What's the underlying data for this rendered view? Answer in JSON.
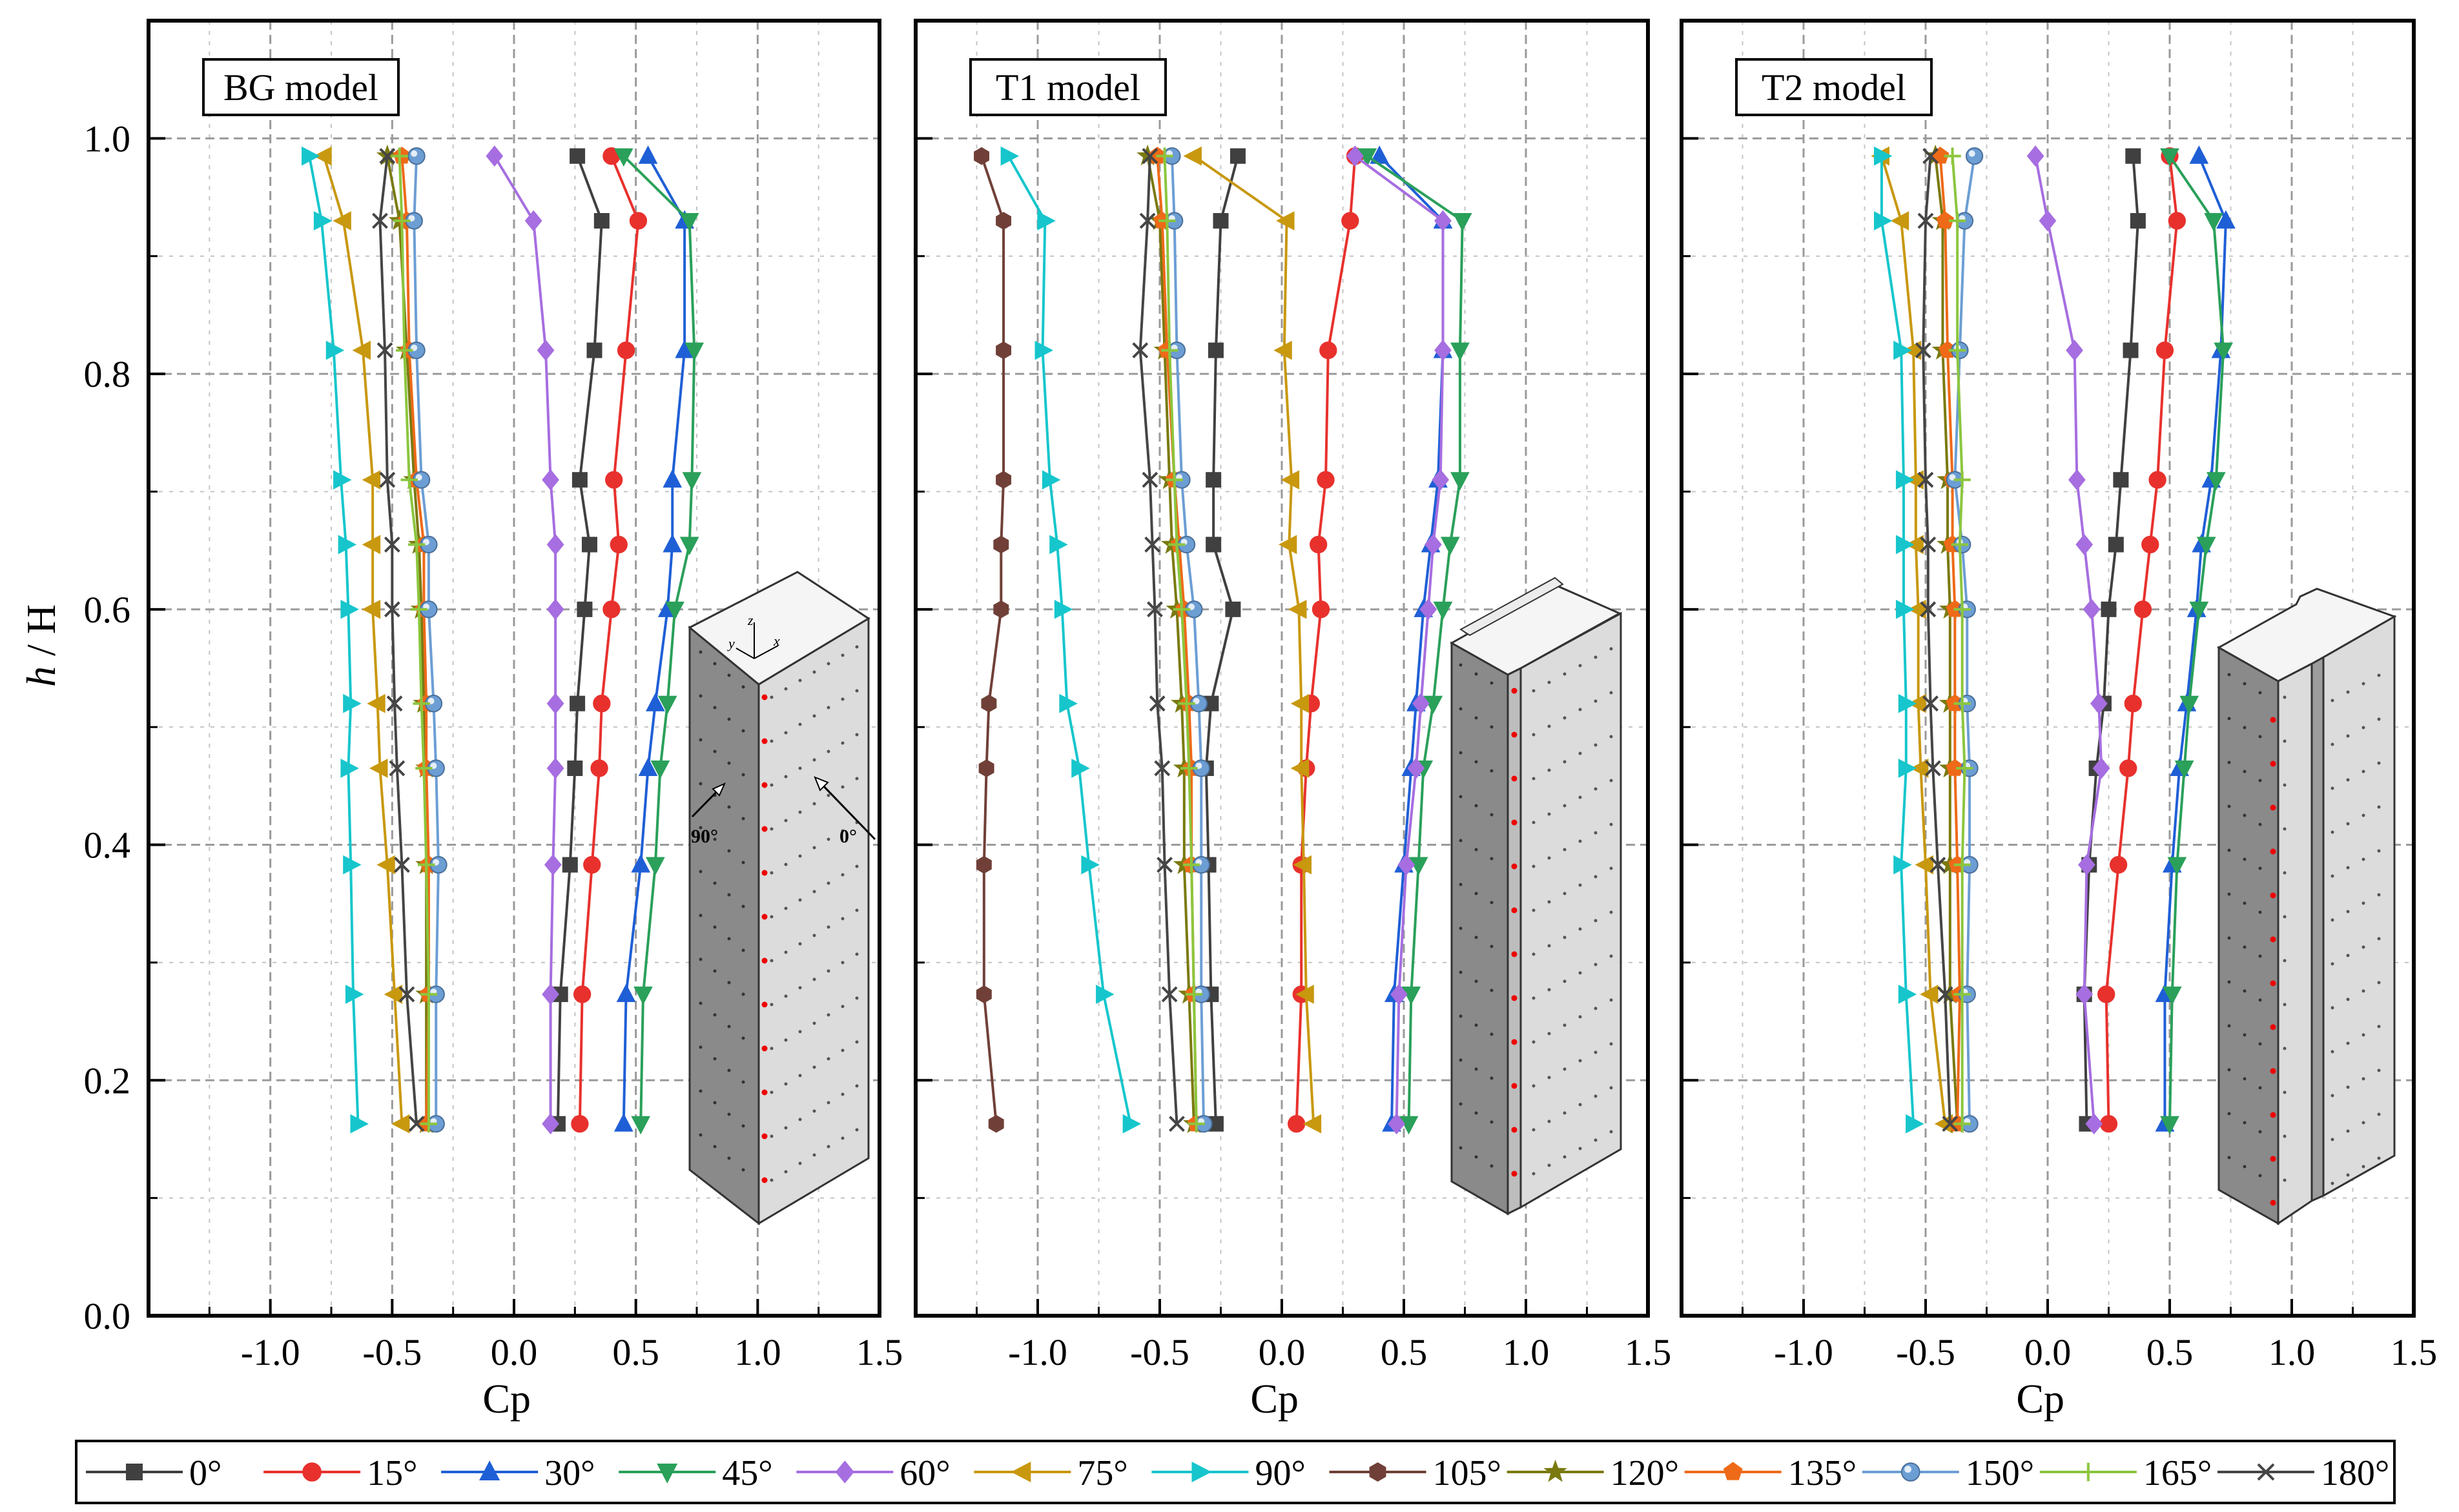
{
  "figure": {
    "ylabel_italic": "h",
    "ylabel_rest": " / H",
    "xlabel": "Cp"
  },
  "axes": {
    "xlim": [
      -1.5,
      1.5
    ],
    "ylim": [
      0.0,
      1.1
    ],
    "xticks": [
      -1.0,
      -0.5,
      0.0,
      0.5,
      1.0,
      1.5
    ],
    "xtick_labels": [
      "-1.0",
      "-0.5",
      "0.0",
      "0.5",
      "1.0",
      "1.5"
    ],
    "yticks": [
      0.0,
      0.2,
      0.4,
      0.6,
      0.8,
      1.0
    ],
    "ytick_labels": [
      "0.0",
      "0.2",
      "0.4",
      "0.6",
      "0.8",
      "1.0"
    ]
  },
  "legend_entries": [
    {
      "label": "0°",
      "color": "#404040",
      "marker": "square"
    },
    {
      "label": "15°",
      "color": "#e8312d",
      "marker": "circle"
    },
    {
      "label": "30°",
      "color": "#1f5fd6",
      "marker": "triangle-up"
    },
    {
      "label": "45°",
      "color": "#2aa05a",
      "marker": "triangle-down"
    },
    {
      "label": "60°",
      "color": "#a66ee0",
      "marker": "diamond"
    },
    {
      "label": "75°",
      "color": "#c8980f",
      "marker": "triangle-left"
    },
    {
      "label": "90°",
      "color": "#16c6cc",
      "marker": "triangle-right"
    },
    {
      "label": "105°",
      "color": "#704038",
      "marker": "hexagon"
    },
    {
      "label": "120°",
      "color": "#7a7a10",
      "marker": "star"
    },
    {
      "label": "135°",
      "color": "#ee6a18",
      "marker": "pentagon"
    },
    {
      "label": "150°",
      "color": "#6c9ed4",
      "marker": "sphere"
    },
    {
      "label": "165°",
      "color": "#8cc63e",
      "marker": "plus"
    },
    {
      "label": "180°",
      "color": "#454545",
      "marker": "x"
    }
  ],
  "chart_data": [
    {
      "type": "line",
      "title": "BG model",
      "xlabel": "Cp",
      "ylabel": "h / H",
      "xlim": [
        -1.5,
        1.5
      ],
      "ylim": [
        0.0,
        1.1
      ],
      "inset_labels": [
        "90°",
        "0°",
        "z",
        "y",
        "x"
      ],
      "y": [
        0.985,
        0.93,
        0.82,
        0.71,
        0.655,
        0.6,
        0.52,
        0.465,
        0.383,
        0.273,
        0.163
      ],
      "series": [
        {
          "name": "0°",
          "values": [
            0.26,
            0.36,
            0.33,
            0.27,
            0.31,
            0.29,
            0.26,
            0.25,
            0.23,
            0.19,
            0.18
          ]
        },
        {
          "name": "15°",
          "values": [
            0.4,
            0.51,
            0.46,
            0.41,
            0.43,
            0.4,
            0.36,
            0.35,
            0.32,
            0.28,
            0.27
          ]
        },
        {
          "name": "30°",
          "values": [
            0.55,
            0.7,
            0.7,
            0.65,
            0.65,
            0.63,
            0.58,
            0.55,
            0.52,
            0.46,
            0.45
          ]
        },
        {
          "name": "45°",
          "values": [
            0.45,
            0.72,
            0.74,
            0.73,
            0.72,
            0.66,
            0.63,
            0.6,
            0.58,
            0.53,
            0.52
          ]
        },
        {
          "name": "60°",
          "values": [
            -0.08,
            0.08,
            0.13,
            0.15,
            0.17,
            0.17,
            0.17,
            0.17,
            0.16,
            0.15,
            0.15
          ]
        },
        {
          "name": "75°",
          "values": [
            -0.78,
            -0.7,
            -0.62,
            -0.58,
            -0.58,
            -0.58,
            -0.56,
            -0.55,
            -0.52,
            -0.49,
            -0.46
          ]
        },
        {
          "name": "90°",
          "values": [
            -0.84,
            -0.79,
            -0.74,
            -0.71,
            -0.69,
            -0.68,
            -0.67,
            -0.68,
            -0.67,
            -0.66,
            -0.64
          ]
        },
        {
          "name": "120°",
          "values": [
            -0.52,
            -0.47,
            -0.44,
            -0.41,
            -0.39,
            -0.38,
            -0.37,
            -0.36,
            -0.36,
            -0.36,
            -0.36
          ]
        },
        {
          "name": "135°",
          "values": [
            -0.46,
            -0.44,
            -0.43,
            -0.4,
            -0.37,
            -0.37,
            -0.36,
            -0.36,
            -0.35,
            -0.35,
            -0.36
          ]
        },
        {
          "name": "150°",
          "values": [
            -0.4,
            -0.41,
            -0.4,
            -0.38,
            -0.35,
            -0.35,
            -0.33,
            -0.32,
            -0.31,
            -0.32,
            -0.32
          ]
        },
        {
          "name": "165°",
          "values": [
            -0.47,
            -0.46,
            -0.45,
            -0.43,
            -0.4,
            -0.39,
            -0.38,
            -0.37,
            -0.36,
            -0.35,
            -0.35
          ]
        },
        {
          "name": "180°",
          "values": [
            -0.52,
            -0.55,
            -0.53,
            -0.52,
            -0.5,
            -0.5,
            -0.49,
            -0.48,
            -0.46,
            -0.44,
            -0.4
          ]
        }
      ]
    },
    {
      "type": "line",
      "title": "T1 model",
      "xlabel": "Cp",
      "ylabel": "h / H",
      "xlim": [
        -1.5,
        1.5
      ],
      "ylim": [
        0.0,
        1.1
      ],
      "y": [
        0.985,
        0.93,
        0.82,
        0.71,
        0.655,
        0.6,
        0.52,
        0.465,
        0.383,
        0.273,
        0.163
      ],
      "series": [
        {
          "name": "0°",
          "values": [
            -0.18,
            -0.25,
            -0.27,
            -0.28,
            -0.28,
            -0.2,
            -0.29,
            -0.31,
            -0.3,
            -0.29,
            -0.27
          ]
        },
        {
          "name": "15°",
          "values": [
            0.3,
            0.28,
            0.19,
            0.18,
            0.15,
            0.16,
            0.12,
            0.1,
            0.08,
            0.08,
            0.06
          ]
        },
        {
          "name": "30°",
          "values": [
            0.4,
            0.66,
            0.66,
            0.64,
            0.61,
            0.58,
            0.55,
            0.53,
            0.5,
            0.46,
            0.45
          ]
        },
        {
          "name": "45°",
          "values": [
            0.35,
            0.74,
            0.73,
            0.73,
            0.69,
            0.66,
            0.62,
            0.58,
            0.56,
            0.53,
            0.52
          ]
        },
        {
          "name": "60°",
          "values": [
            0.3,
            0.66,
            0.66,
            0.65,
            0.62,
            0.6,
            0.57,
            0.55,
            0.51,
            0.48,
            0.47
          ]
        },
        {
          "name": "75°",
          "values": [
            -0.36,
            0.02,
            0.01,
            0.04,
            0.03,
            0.07,
            0.08,
            0.08,
            0.09,
            0.1,
            0.13
          ]
        },
        {
          "name": "90°",
          "values": [
            -1.12,
            -0.97,
            -0.98,
            -0.95,
            -0.92,
            -0.9,
            -0.88,
            -0.83,
            -0.79,
            -0.73,
            -0.62
          ]
        },
        {
          "name": "105°",
          "values": [
            -1.23,
            -1.14,
            -1.14,
            -1.14,
            -1.15,
            -1.15,
            -1.2,
            -1.21,
            -1.22,
            -1.22,
            -1.17
          ]
        },
        {
          "name": "120°",
          "values": [
            -0.55,
            -0.5,
            -0.48,
            -0.46,
            -0.45,
            -0.43,
            -0.41,
            -0.4,
            -0.4,
            -0.38,
            -0.36
          ]
        },
        {
          "name": "135°",
          "values": [
            -0.51,
            -0.49,
            -0.47,
            -0.44,
            -0.42,
            -0.4,
            -0.38,
            -0.37,
            -0.37,
            -0.36,
            -0.35
          ]
        },
        {
          "name": "150°",
          "values": [
            -0.45,
            -0.44,
            -0.43,
            -0.41,
            -0.39,
            -0.36,
            -0.34,
            -0.33,
            -0.33,
            -0.33,
            -0.32
          ]
        },
        {
          "name": "165°",
          "values": [
            -0.48,
            -0.47,
            -0.46,
            -0.44,
            -0.43,
            -0.41,
            -0.39,
            -0.38,
            -0.37,
            -0.36,
            -0.35
          ]
        },
        {
          "name": "180°",
          "values": [
            -0.54,
            -0.55,
            -0.58,
            -0.54,
            -0.53,
            -0.52,
            -0.51,
            -0.49,
            -0.48,
            -0.46,
            -0.43
          ]
        }
      ]
    },
    {
      "type": "line",
      "title": "T2 model",
      "xlabel": "Cp",
      "ylabel": "h / H",
      "xlim": [
        -1.5,
        1.5
      ],
      "ylim": [
        0.0,
        1.1
      ],
      "y": [
        0.985,
        0.93,
        0.82,
        0.71,
        0.655,
        0.6,
        0.52,
        0.465,
        0.383,
        0.273,
        0.163
      ],
      "series": [
        {
          "name": "0°",
          "values": [
            0.35,
            0.37,
            0.34,
            0.3,
            0.28,
            0.25,
            0.23,
            0.2,
            0.17,
            0.15,
            0.16
          ]
        },
        {
          "name": "15°",
          "values": [
            0.5,
            0.53,
            0.48,
            0.45,
            0.42,
            0.39,
            0.35,
            0.33,
            0.29,
            0.24,
            0.25
          ]
        },
        {
          "name": "30°",
          "values": [
            0.62,
            0.73,
            0.71,
            0.67,
            0.63,
            0.61,
            0.57,
            0.54,
            0.51,
            0.48,
            0.48
          ]
        },
        {
          "name": "45°",
          "values": [
            0.5,
            0.68,
            0.72,
            0.69,
            0.65,
            0.62,
            0.58,
            0.56,
            0.53,
            0.51,
            0.5
          ]
        },
        {
          "name": "60°",
          "values": [
            -0.05,
            0.0,
            0.11,
            0.12,
            0.15,
            0.18,
            0.21,
            0.22,
            0.16,
            0.15,
            0.19
          ]
        },
        {
          "name": "75°",
          "values": [
            -0.68,
            -0.6,
            -0.55,
            -0.54,
            -0.54,
            -0.53,
            -0.53,
            -0.52,
            -0.5,
            -0.48,
            -0.42
          ]
        },
        {
          "name": "90°",
          "values": [
            -0.68,
            -0.68,
            -0.6,
            -0.59,
            -0.59,
            -0.59,
            -0.58,
            -0.58,
            -0.6,
            -0.58,
            -0.55
          ]
        },
        {
          "name": "120°",
          "values": [
            -0.46,
            -0.43,
            -0.43,
            -0.41,
            -0.41,
            -0.4,
            -0.4,
            -0.4,
            -0.4,
            -0.4,
            -0.37
          ]
        },
        {
          "name": "135°",
          "values": [
            -0.44,
            -0.42,
            -0.41,
            -0.39,
            -0.39,
            -0.38,
            -0.38,
            -0.38,
            -0.37,
            -0.36,
            -0.37
          ]
        },
        {
          "name": "150°",
          "values": [
            -0.3,
            -0.34,
            -0.36,
            -0.38,
            -0.35,
            -0.33,
            -0.33,
            -0.32,
            -0.32,
            -0.33,
            -0.32
          ]
        },
        {
          "name": "165°",
          "values": [
            -0.39,
            -0.37,
            -0.37,
            -0.35,
            -0.36,
            -0.35,
            -0.35,
            -0.34,
            -0.35,
            -0.35,
            -0.35
          ]
        },
        {
          "name": "180°",
          "values": [
            -0.48,
            -0.5,
            -0.51,
            -0.5,
            -0.49,
            -0.49,
            -0.48,
            -0.47,
            -0.45,
            -0.42,
            -0.4
          ]
        }
      ]
    }
  ]
}
